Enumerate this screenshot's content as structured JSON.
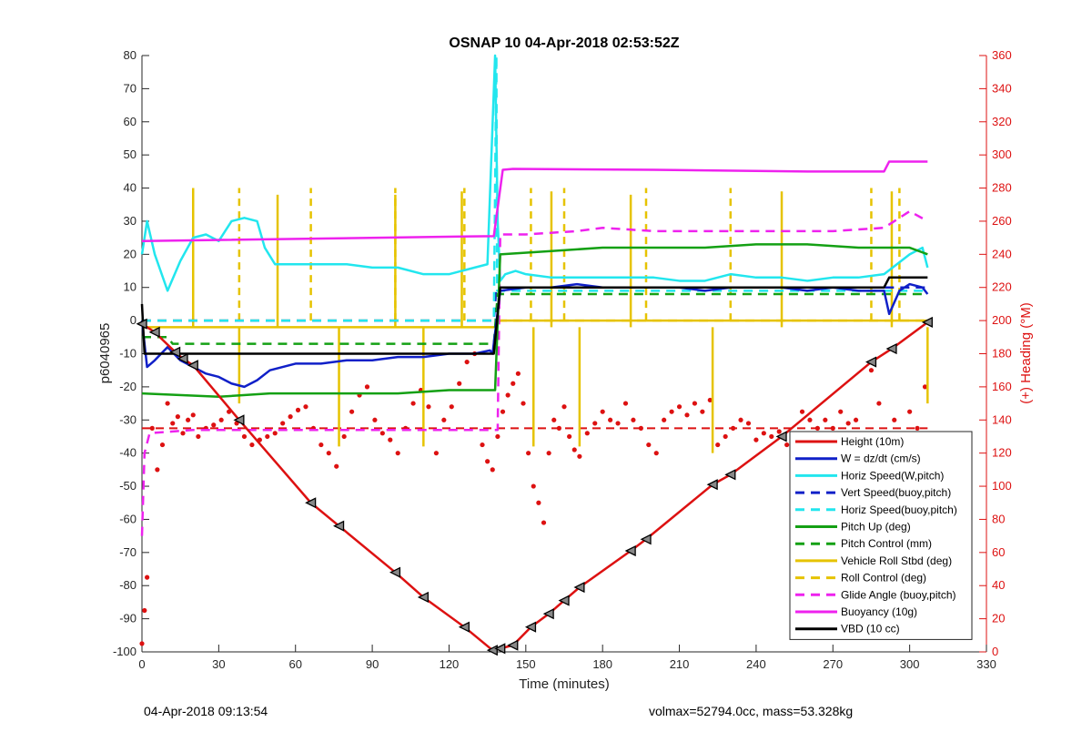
{
  "footer": {
    "timestamp": "04-Apr-2018 09:13:54",
    "info": "volmax=52794.0cc, mass=53.328kg"
  },
  "chart_data": {
    "type": "line",
    "title": "OSNAP 10 04-Apr-2018 02:53:52Z",
    "xlabel": "Time (minutes)",
    "ylabel": "p6040965",
    "y2label": "(+) Heading (°M)",
    "xlim": [
      0,
      330
    ],
    "ylim": [
      -100,
      80
    ],
    "y2lim": [
      0,
      360
    ],
    "xticks": [
      0,
      30,
      60,
      90,
      120,
      150,
      180,
      210,
      240,
      270,
      300,
      330
    ],
    "yticks": [
      -100,
      -90,
      -80,
      -70,
      -60,
      -50,
      -40,
      -30,
      -20,
      -10,
      0,
      10,
      20,
      30,
      40,
      50,
      60,
      70,
      80
    ],
    "y2ticks": [
      0,
      20,
      40,
      60,
      80,
      100,
      120,
      140,
      160,
      180,
      200,
      220,
      240,
      260,
      280,
      300,
      320,
      340,
      360
    ],
    "legend_position": "bottom-right",
    "colors": {
      "red": "#dd1111",
      "blue": "#1020c8",
      "cyan": "#22e6ee",
      "green": "#14a014",
      "yellow": "#e6c300",
      "magenta": "#ee22ee",
      "black": "#000000"
    },
    "series": [
      {
        "name": "Height (10m)",
        "color": "red",
        "style": "line-markers",
        "x": [
          0,
          5,
          13,
          16,
          20,
          38,
          66,
          77,
          99,
          110,
          126,
          137,
          140,
          145,
          152,
          159,
          165,
          171,
          191,
          197,
          223,
          230,
          250,
          285,
          293,
          307
        ],
        "y": [
          -1,
          -3.5,
          -9.5,
          -11.5,
          -13.5,
          -30,
          -55,
          -62,
          -76,
          -83.5,
          -92.5,
          -99.5,
          -99,
          -98,
          -92.5,
          -88.5,
          -84.5,
          -80.5,
          -69.5,
          -66,
          -49.5,
          -46.5,
          -35,
          -12.5,
          -8.5,
          -0.5
        ]
      },
      {
        "name": "W = dz/dt (cm/s)",
        "color": "blue",
        "style": "solid",
        "x": [
          0,
          2,
          5,
          10,
          15,
          20,
          25,
          30,
          35,
          40,
          45,
          50,
          60,
          70,
          80,
          90,
          100,
          110,
          120,
          130,
          136,
          137,
          140,
          150,
          160,
          170,
          180,
          190,
          200,
          210,
          220,
          230,
          240,
          250,
          260,
          270,
          280,
          290,
          292,
          296,
          300,
          305,
          307
        ],
        "y": [
          0,
          -14,
          -12,
          -8,
          -12,
          -14,
          -16,
          -17,
          -19,
          -20,
          -18,
          -15,
          -13,
          -13,
          -12,
          -12,
          -11,
          -11,
          -10,
          -10,
          -9,
          -10,
          9,
          10,
          10,
          11,
          10,
          10,
          10,
          10,
          9,
          10,
          10,
          10,
          9,
          10,
          9,
          9,
          2,
          9,
          11,
          10,
          8
        ]
      },
      {
        "name": "Horiz Speed(W,pitch)",
        "color": "cyan",
        "style": "solid",
        "x": [
          0,
          2,
          5,
          10,
          15,
          20,
          25,
          30,
          35,
          40,
          45,
          48,
          52,
          60,
          70,
          80,
          90,
          100,
          110,
          120,
          130,
          135,
          138,
          139,
          140,
          142,
          146,
          150,
          160,
          170,
          180,
          190,
          200,
          210,
          220,
          230,
          240,
          250,
          260,
          270,
          280,
          290,
          300,
          305,
          307
        ],
        "y": [
          20,
          30,
          20,
          9,
          18,
          25,
          26,
          24,
          30,
          31,
          30,
          22,
          17,
          17,
          17,
          17,
          16,
          16,
          14,
          14,
          16,
          17,
          80,
          30,
          12,
          14,
          15,
          14,
          13,
          13,
          13,
          13,
          13,
          12,
          12,
          14,
          13,
          13,
          12,
          13,
          13,
          14,
          20,
          22,
          16
        ]
      },
      {
        "name": "Vert Speed(buoy,pitch)",
        "color": "blue",
        "style": "dashed",
        "x": [
          0,
          137.5,
          138.5,
          307
        ],
        "y": [
          0,
          0,
          10,
          10
        ]
      },
      {
        "name": "Horiz Speed(buoy,pitch)",
        "color": "cyan",
        "style": "dashed",
        "x": [
          0,
          137.5,
          138.5,
          138.8,
          139.2,
          307
        ],
        "y": [
          0,
          0,
          80,
          9,
          9,
          9
        ]
      },
      {
        "name": "Pitch Up (deg)",
        "color": "green",
        "style": "solid",
        "x": [
          0,
          30,
          50,
          80,
          100,
          120,
          138,
          140,
          160,
          180,
          200,
          220,
          240,
          260,
          280,
          300,
          307
        ],
        "y": [
          -22,
          -23,
          -22,
          -22,
          -22,
          -21,
          -21,
          20,
          21,
          22,
          22,
          22,
          23,
          23,
          22,
          22,
          20
        ]
      },
      {
        "name": "Pitch Control (mm)",
        "color": "green",
        "style": "dashed",
        "x": [
          0,
          10,
          12,
          137.5,
          139,
          307
        ],
        "y": [
          -5,
          -5,
          -7,
          -7,
          8,
          8
        ]
      },
      {
        "name": "Vehicle Roll Stbd (deg)",
        "color": "yellow",
        "style": "solid",
        "x": [
          0,
          100,
          138,
          140,
          160,
          200,
          240,
          280,
          300,
          307
        ],
        "y": [
          -2,
          -2,
          -2,
          0,
          0,
          0,
          0,
          0,
          0,
          0
        ],
        "spikes": [
          {
            "x": 20,
            "y": 39
          },
          {
            "x": 38,
            "y": -25
          },
          {
            "x": 53,
            "y": 38
          },
          {
            "x": 77,
            "y": -38
          },
          {
            "x": 99,
            "y": 38
          },
          {
            "x": 110,
            "y": -38
          },
          {
            "x": 125,
            "y": 39
          },
          {
            "x": 153,
            "y": -38
          },
          {
            "x": 160,
            "y": 39
          },
          {
            "x": 171,
            "y": -38
          },
          {
            "x": 191,
            "y": 38
          },
          {
            "x": 223,
            "y": -40
          },
          {
            "x": 250,
            "y": 39
          },
          {
            "x": 293,
            "y": 39
          },
          {
            "x": 307,
            "y": -25
          }
        ]
      },
      {
        "name": "Roll Control (deg)",
        "color": "yellow",
        "style": "dashed",
        "x": [
          0,
          307
        ],
        "y": [
          0,
          0
        ],
        "spikes": [
          {
            "x": 20,
            "y": 40
          },
          {
            "x": 38,
            "y": 40
          },
          {
            "x": 66,
            "y": 40
          },
          {
            "x": 99,
            "y": 40
          },
          {
            "x": 126,
            "y": 40
          },
          {
            "x": 152,
            "y": 40
          },
          {
            "x": 165,
            "y": 40
          },
          {
            "x": 197,
            "y": 40
          },
          {
            "x": 230,
            "y": 40
          },
          {
            "x": 285,
            "y": 40
          },
          {
            "x": 296,
            "y": 40
          }
        ]
      },
      {
        "name": "Glide Angle (buoy,pitch)",
        "color": "magenta",
        "style": "dashed",
        "x": [
          0,
          1,
          3,
          20,
          60,
          100,
          137,
          139,
          140,
          150,
          170,
          180,
          200,
          240,
          270,
          290,
          300,
          307
        ],
        "y": [
          -65,
          -40,
          -34,
          -33,
          -33,
          -33,
          -33,
          -33,
          26,
          26,
          27,
          28,
          27,
          27,
          27,
          28,
          33,
          30
        ]
      },
      {
        "name": "Buoyancy (10g)",
        "color": "magenta",
        "style": "solid",
        "x": [
          0,
          137.5,
          141,
          145,
          200,
          260,
          290,
          292,
          307
        ],
        "y": [
          24,
          25.5,
          45.5,
          45.8,
          45.5,
          45,
          45,
          48,
          48
        ]
      },
      {
        "name": "VBD (10 cc)",
        "color": "black",
        "style": "solid",
        "x": [
          0,
          1,
          2,
          137.5,
          140,
          200,
          290,
          292,
          307
        ],
        "y": [
          5,
          -10,
          -10,
          -10,
          10,
          10,
          10,
          13,
          13
        ]
      }
    ],
    "heading_series": {
      "name": "Heading",
      "axis": "right",
      "color": "red",
      "style": "dots",
      "x": [
        0,
        1,
        2,
        4,
        6,
        8,
        10,
        12,
        14,
        16,
        18,
        20,
        22,
        25,
        28,
        31,
        34,
        37,
        40,
        43,
        46,
        49,
        52,
        55,
        58,
        61,
        64,
        67,
        70,
        73,
        76,
        79,
        82,
        85,
        88,
        91,
        94,
        97,
        100,
        103,
        106,
        109,
        112,
        115,
        118,
        121,
        124,
        127,
        130,
        133,
        135,
        137,
        139,
        141,
        143,
        145,
        147,
        149,
        151,
        153,
        155,
        157,
        159,
        161,
        163,
        165,
        167,
        169,
        171,
        174,
        177,
        180,
        183,
        186,
        189,
        192,
        195,
        198,
        201,
        204,
        207,
        210,
        213,
        216,
        219,
        222,
        225,
        228,
        231,
        234,
        237,
        240,
        243,
        246,
        249,
        252,
        255,
        258,
        261,
        264,
        267,
        270,
        273,
        276,
        279,
        282,
        285,
        288,
        291,
        294,
        297,
        300,
        303,
        306
      ],
      "y": [
        5,
        25,
        45,
        135,
        110,
        125,
        150,
        138,
        142,
        132,
        140,
        143,
        130,
        135,
        137,
        140,
        145,
        138,
        130,
        125,
        128,
        130,
        132,
        138,
        142,
        146,
        148,
        135,
        125,
        120,
        112,
        130,
        145,
        155,
        160,
        140,
        132,
        128,
        120,
        135,
        150,
        158,
        148,
        120,
        140,
        148,
        162,
        175,
        180,
        125,
        115,
        110,
        130,
        145,
        155,
        162,
        168,
        150,
        120,
        100,
        90,
        78,
        120,
        140,
        135,
        148,
        130,
        122,
        118,
        132,
        138,
        145,
        140,
        138,
        150,
        140,
        135,
        125,
        120,
        140,
        145,
        148,
        143,
        150,
        145,
        152,
        125,
        130,
        135,
        140,
        138,
        128,
        132,
        130,
        133,
        125,
        120,
        145,
        140,
        135,
        140,
        135,
        145,
        138,
        140,
        125,
        170,
        150,
        130,
        140,
        125,
        145,
        135,
        160
      ]
    },
    "heading_reference": {
      "axis": "right",
      "color": "red",
      "style": "dashed",
      "x": [
        0,
        307
      ],
      "y": [
        135,
        135
      ]
    }
  }
}
